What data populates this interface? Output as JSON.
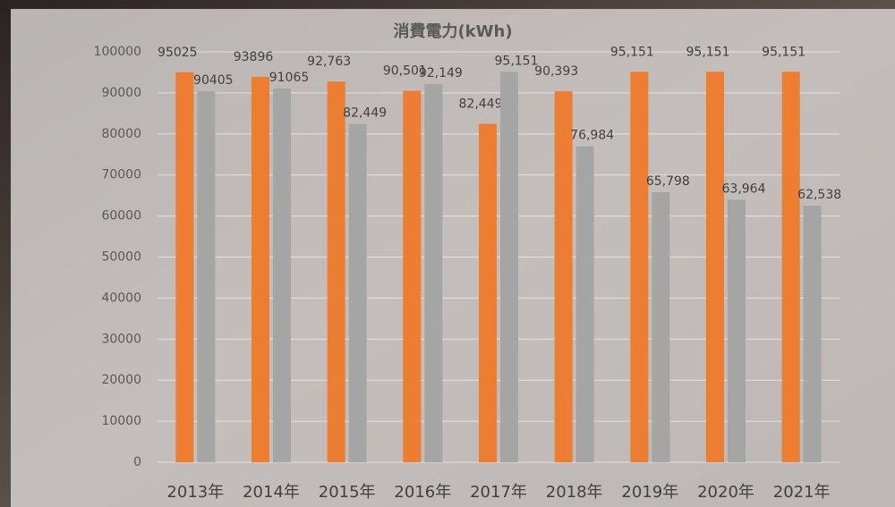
{
  "chart_data": {
    "type": "bar",
    "title": "消費電力(kWh)",
    "categories": [
      "2013年",
      "2014年",
      "2015年",
      "2016年",
      "2017年",
      "2018年",
      "2019年",
      "2020年",
      "2021年"
    ],
    "series": [
      {
        "color": "#ed7d31",
        "values": [
          95025,
          93896,
          92763,
          90501,
          82449,
          90393,
          95151,
          95151,
          95151
        ],
        "value_labels": [
          "95025",
          "93896",
          "92,763",
          "90,501",
          "82,449",
          "90,393",
          "95,151",
          "95,151",
          "95,151"
        ]
      },
      {
        "color": "#a5a5a5",
        "values": [
          90405,
          91065,
          82449,
          92149,
          95151,
          76984,
          65798,
          63964,
          62538
        ],
        "value_labels": [
          "90405",
          "91065",
          "82,449",
          "92,149",
          "95,151",
          "76,984",
          "65,798",
          "63,964",
          "62,538"
        ]
      }
    ],
    "ylim": [
      0,
      100000
    ],
    "yticks": [
      0,
      10000,
      20000,
      30000,
      40000,
      50000,
      60000,
      70000,
      80000,
      90000,
      100000
    ],
    "grid": true
  }
}
